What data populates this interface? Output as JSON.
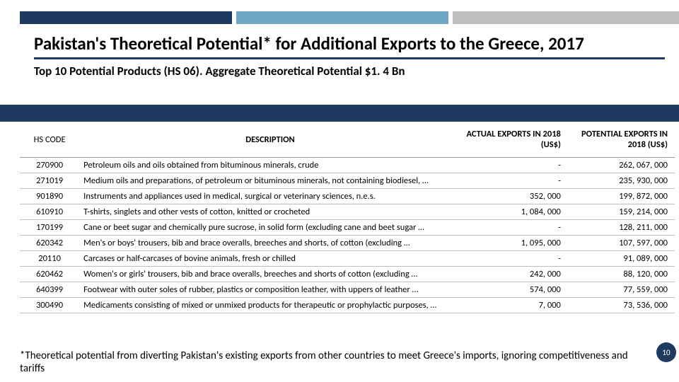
{
  "colors": {
    "navy": "#1f3a5f",
    "lightblue": "#6ea8c4",
    "gray": "#bfbfbf",
    "white": "#ffffff",
    "black": "#000000"
  },
  "header": {
    "title": "Pakistan's Theoretical Potential* for Additional Exports to the Greece, 2017",
    "subtitle": "Top 10 Potential Products (HS 06). Aggregate Theoretical Potential $1. 4 Bn"
  },
  "table": {
    "columns": {
      "code": "HS CODE",
      "desc": "DESCRIPTION",
      "actual": "ACTUAL EXPORTS IN 2018 (US$)",
      "potential": "POTENTIAL EXPORTS IN 2018 (US$)"
    },
    "rows": [
      {
        "code": "270900",
        "desc": "Petroleum oils and oils obtained from bituminous minerals, crude",
        "actual": "-",
        "potential": "262, 067, 000"
      },
      {
        "code": "271019",
        "desc": "Medium oils and preparations, of petroleum or bituminous minerals, not containing biodiesel, …",
        "actual": "-",
        "potential": "235, 930, 000"
      },
      {
        "code": "901890",
        "desc": "Instruments and appliances used in medical, surgical or veterinary sciences, n.e.s.",
        "actual": "352, 000",
        "potential": "199, 872, 000"
      },
      {
        "code": "610910",
        "desc": "T-shirts, singlets and other vests of cotton, knitted or crocheted",
        "actual": "1, 084, 000",
        "potential": "159, 214, 000"
      },
      {
        "code": "170199",
        "desc": "Cane or beet sugar and chemically pure sucrose, in solid form (excluding cane and beet sugar …",
        "actual": "-",
        "potential": "128, 211, 000"
      },
      {
        "code": "620342",
        "desc": "Men's or boys' trousers, bib and brace overalls, breeches and shorts, of cotton (excluding …",
        "actual": "1, 095, 000",
        "potential": "107, 597, 000"
      },
      {
        "code": "20110",
        "desc": "Carcases or half-carcases of bovine animals, fresh or chilled",
        "actual": "-",
        "potential": "91, 089, 000"
      },
      {
        "code": "620462",
        "desc": "Women's or girls' trousers, bib and brace overalls, breeches and shorts of cotton (excluding …",
        "actual": "242, 000",
        "potential": "88, 120, 000"
      },
      {
        "code": "640399",
        "desc": "Footwear with outer soles of rubber, plastics or composition leather, with uppers of leather …",
        "actual": "574, 000",
        "potential": "77, 559, 000"
      },
      {
        "code": "300490",
        "desc": "Medicaments consisting of mixed or unmixed products for therapeutic or prophylactic purposes, …",
        "actual": "7, 000",
        "potential": "73, 536, 000"
      }
    ]
  },
  "footnote": "*Theoretical potential from diverting Pakistan's existing exports from other countries to meet Greece's imports, ignoring competitiveness and tariffs",
  "page_number": "10"
}
